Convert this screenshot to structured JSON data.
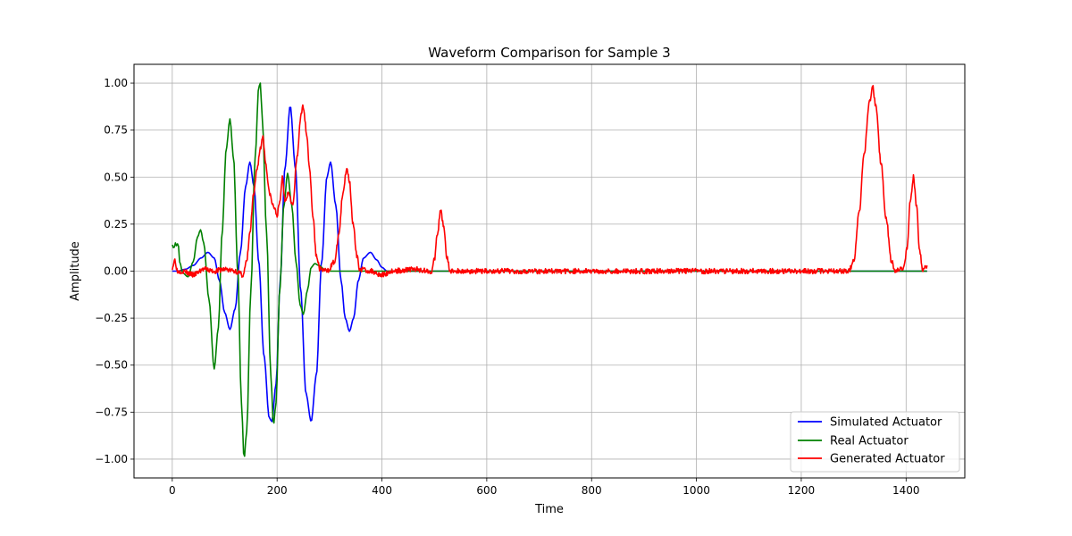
{
  "chart_data": {
    "type": "line",
    "title": "Waveform Comparison for Sample 3",
    "xlabel": "Time",
    "ylabel": "Amplitude",
    "xlim": [
      -73,
      1512
    ],
    "ylim": [
      -1.1,
      1.1
    ],
    "xticks": [
      0,
      200,
      400,
      600,
      800,
      1000,
      1200,
      1400
    ],
    "yticks": [
      -1.0,
      -0.75,
      -0.5,
      -0.25,
      0.0,
      0.25,
      0.5,
      0.75,
      1.0
    ],
    "xtick_labels": [
      "0",
      "200",
      "400",
      "600",
      "800",
      "1000",
      "1200",
      "1400"
    ],
    "ytick_labels": [
      "−1.00",
      "−0.75",
      "−0.50",
      "−0.25",
      "0.00",
      "0.25",
      "0.50",
      "0.75",
      "1.00"
    ],
    "grid": true,
    "legend_position": "lower-right",
    "series": [
      {
        "name": "Simulated Actuator",
        "color": "#0000ff",
        "points": [
          [
            0,
            0
          ],
          [
            10,
            0
          ],
          [
            25,
            0.01
          ],
          [
            40,
            0.03
          ],
          [
            55,
            0.07
          ],
          [
            68,
            0.1
          ],
          [
            80,
            0.07
          ],
          [
            90,
            -0.05
          ],
          [
            100,
            -0.22
          ],
          [
            110,
            -0.31
          ],
          [
            120,
            -0.2
          ],
          [
            130,
            0.1
          ],
          [
            140,
            0.45
          ],
          [
            148,
            0.58
          ],
          [
            156,
            0.45
          ],
          [
            165,
            0.05
          ],
          [
            175,
            -0.45
          ],
          [
            185,
            -0.78
          ],
          [
            190,
            -0.8
          ],
          [
            198,
            -0.6
          ],
          [
            206,
            -0.05
          ],
          [
            215,
            0.55
          ],
          [
            225,
            0.88
          ],
          [
            235,
            0.55
          ],
          [
            245,
            -0.1
          ],
          [
            255,
            -0.65
          ],
          [
            265,
            -0.8
          ],
          [
            275,
            -0.55
          ],
          [
            285,
            0.05
          ],
          [
            295,
            0.5
          ],
          [
            302,
            0.58
          ],
          [
            312,
            0.35
          ],
          [
            322,
            -0.05
          ],
          [
            330,
            -0.25
          ],
          [
            338,
            -0.32
          ],
          [
            346,
            -0.25
          ],
          [
            355,
            -0.05
          ],
          [
            365,
            0.07
          ],
          [
            378,
            0.1
          ],
          [
            390,
            0.06
          ],
          [
            400,
            0.02
          ],
          [
            410,
            0
          ],
          [
            1440,
            0
          ]
        ]
      },
      {
        "name": "Real Actuator",
        "color": "#008000",
        "points": [
          [
            0,
            0.14
          ],
          [
            3,
            0.12
          ],
          [
            6,
            0.15
          ],
          [
            9,
            0.13
          ],
          [
            11,
            0.16
          ],
          [
            14,
            0.05
          ],
          [
            20,
            -0.01
          ],
          [
            30,
            -0.03
          ],
          [
            40,
            0.05
          ],
          [
            48,
            0.18
          ],
          [
            54,
            0.22
          ],
          [
            60,
            0.15
          ],
          [
            70,
            -0.15
          ],
          [
            80,
            -0.52
          ],
          [
            88,
            -0.3
          ],
          [
            95,
            0.2
          ],
          [
            103,
            0.65
          ],
          [
            110,
            0.81
          ],
          [
            117,
            0.6
          ],
          [
            125,
            0.0
          ],
          [
            132,
            -0.7
          ],
          [
            137,
            -1.0
          ],
          [
            142,
            -0.85
          ],
          [
            150,
            -0.1
          ],
          [
            158,
            0.6
          ],
          [
            165,
            0.98
          ],
          [
            168,
            1.0
          ],
          [
            172,
            0.8
          ],
          [
            180,
            0.2
          ],
          [
            188,
            -0.55
          ],
          [
            193,
            -0.82
          ],
          [
            198,
            -0.7
          ],
          [
            205,
            -0.1
          ],
          [
            213,
            0.35
          ],
          [
            220,
            0.52
          ],
          [
            228,
            0.35
          ],
          [
            236,
            0.05
          ],
          [
            244,
            -0.18
          ],
          [
            250,
            -0.23
          ],
          [
            258,
            -0.1
          ],
          [
            265,
            0.02
          ],
          [
            272,
            0.04
          ],
          [
            280,
            0.03
          ],
          [
            290,
            0.01
          ],
          [
            300,
            0
          ],
          [
            1440,
            0
          ]
        ]
      },
      {
        "name": "Generated Actuator",
        "color": "#ff0000",
        "noise": 0.014,
        "points": [
          [
            0,
            0.02
          ],
          [
            5,
            0.06
          ],
          [
            10,
            0.0
          ],
          [
            20,
            0.0
          ],
          [
            40,
            -0.02
          ],
          [
            60,
            0.01
          ],
          [
            80,
            0.0
          ],
          [
            100,
            0.01
          ],
          [
            120,
            0.0
          ],
          [
            135,
            -0.02
          ],
          [
            142,
            0.05
          ],
          [
            148,
            0.2
          ],
          [
            155,
            0.4
          ],
          [
            162,
            0.55
          ],
          [
            168,
            0.65
          ],
          [
            173,
            0.72
          ],
          [
            178,
            0.58
          ],
          [
            185,
            0.42
          ],
          [
            192,
            0.35
          ],
          [
            200,
            0.3
          ],
          [
            205,
            0.36
          ],
          [
            210,
            0.5
          ],
          [
            215,
            0.38
          ],
          [
            222,
            0.42
          ],
          [
            230,
            0.35
          ],
          [
            238,
            0.6
          ],
          [
            245,
            0.82
          ],
          [
            250,
            0.88
          ],
          [
            256,
            0.74
          ],
          [
            262,
            0.55
          ],
          [
            268,
            0.3
          ],
          [
            275,
            0.08
          ],
          [
            282,
            0.01
          ],
          [
            295,
            0.0
          ],
          [
            310,
            0.05
          ],
          [
            318,
            0.2
          ],
          [
            325,
            0.4
          ],
          [
            333,
            0.55
          ],
          [
            338,
            0.48
          ],
          [
            345,
            0.25
          ],
          [
            352,
            0.08
          ],
          [
            358,
            0.01
          ],
          [
            380,
            0.0
          ],
          [
            400,
            -0.02
          ],
          [
            420,
            0.0
          ],
          [
            460,
            0.01
          ],
          [
            495,
            0.0
          ],
          [
            500,
            0.06
          ],
          [
            506,
            0.2
          ],
          [
            512,
            0.32
          ],
          [
            518,
            0.24
          ],
          [
            524,
            0.07
          ],
          [
            530,
            0.0
          ],
          [
            600,
            0.0
          ],
          [
            700,
            0.0
          ],
          [
            800,
            0.0
          ],
          [
            900,
            0.0
          ],
          [
            1000,
            0.0
          ],
          [
            1100,
            0.0
          ],
          [
            1200,
            0.0
          ],
          [
            1290,
            0.0
          ],
          [
            1300,
            0.05
          ],
          [
            1310,
            0.3
          ],
          [
            1320,
            0.62
          ],
          [
            1330,
            0.9
          ],
          [
            1336,
            0.98
          ],
          [
            1342,
            0.88
          ],
          [
            1352,
            0.58
          ],
          [
            1362,
            0.28
          ],
          [
            1372,
            0.05
          ],
          [
            1380,
            0.0
          ],
          [
            1395,
            0.01
          ],
          [
            1402,
            0.12
          ],
          [
            1408,
            0.38
          ],
          [
            1414,
            0.5
          ],
          [
            1420,
            0.35
          ],
          [
            1426,
            0.1
          ],
          [
            1432,
            0.0
          ],
          [
            1440,
            0.03
          ]
        ]
      }
    ]
  }
}
